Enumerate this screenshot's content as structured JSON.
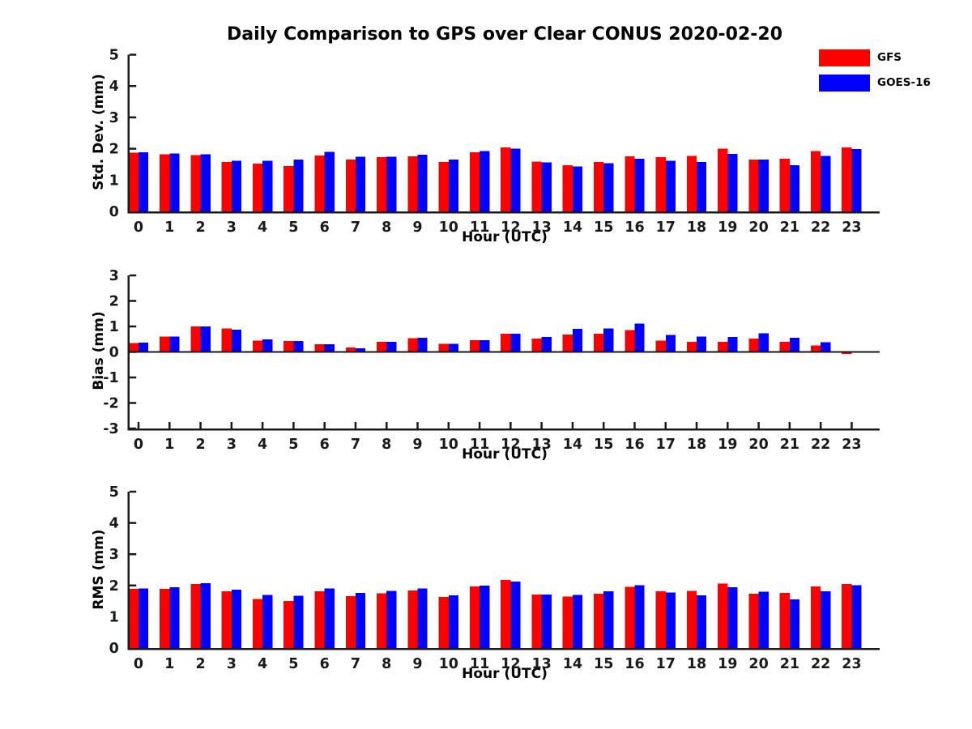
{
  "page": {
    "title": "Daily Comparison to GPS over Clear CONUS 2020-02-20",
    "background": "#ffffff"
  },
  "legend": {
    "items": [
      {
        "label": "GFS",
        "color": "#ff0000"
      },
      {
        "label": "GOES-16",
        "color": "#0000ff"
      }
    ]
  },
  "axis": {
    "color": "#1a1a1a",
    "text_color": "#1a1a1a"
  },
  "chart_data": [
    {
      "type": "bar",
      "name": "std-dev",
      "ylabel": "Std. Dev. (mm)",
      "xlabel": "Hour (UTC)",
      "ylim": [
        0,
        5
      ],
      "yticks": [
        0,
        1,
        2,
        3,
        4,
        5
      ],
      "grid": false,
      "categories": [
        0,
        1,
        2,
        3,
        4,
        5,
        6,
        7,
        8,
        9,
        10,
        11,
        12,
        13,
        14,
        15,
        16,
        17,
        18,
        19,
        20,
        21,
        22,
        23
      ],
      "series": [
        {
          "name": "GFS",
          "color": "#ff0000",
          "values": [
            1.87,
            1.82,
            1.79,
            1.57,
            1.53,
            1.45,
            1.78,
            1.66,
            1.73,
            1.76,
            1.57,
            1.89,
            2.04,
            1.59,
            1.47,
            1.58,
            1.76,
            1.73,
            1.77,
            2.0,
            1.66,
            1.68,
            1.93,
            2.04
          ]
        },
        {
          "name": "GOES-16",
          "color": "#0000ff",
          "values": [
            1.88,
            1.85,
            1.82,
            1.62,
            1.62,
            1.65,
            1.9,
            1.75,
            1.75,
            1.81,
            1.65,
            1.93,
            2.0,
            1.56,
            1.43,
            1.54,
            1.68,
            1.61,
            1.57,
            1.83,
            1.66,
            1.47,
            1.77,
            1.99
          ]
        }
      ]
    },
    {
      "type": "bar",
      "name": "bias",
      "ylabel": "Bias (mm)",
      "xlabel": "Hour (UTC)",
      "ylim": [
        -3,
        3
      ],
      "yticks": [
        -3,
        -2,
        -1,
        0,
        1,
        2,
        3
      ],
      "zero_line": true,
      "grid": false,
      "categories": [
        0,
        1,
        2,
        3,
        4,
        5,
        6,
        7,
        8,
        9,
        10,
        11,
        12,
        13,
        14,
        15,
        16,
        17,
        18,
        19,
        20,
        21,
        22,
        23
      ],
      "series": [
        {
          "name": "GFS",
          "color": "#ff0000",
          "values": [
            0.35,
            0.6,
            1.0,
            0.92,
            0.45,
            0.43,
            0.3,
            0.18,
            0.39,
            0.54,
            0.32,
            0.46,
            0.71,
            0.52,
            0.68,
            0.72,
            0.86,
            0.45,
            0.39,
            0.39,
            0.52,
            0.39,
            0.26,
            -0.08
          ]
        },
        {
          "name": "GOES-16",
          "color": "#0000ff",
          "values": [
            0.36,
            0.61,
            1.0,
            0.88,
            0.49,
            0.43,
            0.3,
            0.15,
            0.39,
            0.55,
            0.32,
            0.46,
            0.71,
            0.58,
            0.9,
            0.92,
            1.11,
            0.67,
            0.61,
            0.58,
            0.73,
            0.56,
            0.38,
            -0.03
          ]
        }
      ]
    },
    {
      "type": "bar",
      "name": "rms",
      "ylabel": "RMS (mm)",
      "xlabel": "Hour (UTC)",
      "ylim": [
        0,
        5
      ],
      "yticks": [
        0,
        1,
        2,
        3,
        4,
        5
      ],
      "grid": false,
      "categories": [
        0,
        1,
        2,
        3,
        4,
        5,
        6,
        7,
        8,
        9,
        10,
        11,
        12,
        13,
        14,
        15,
        16,
        17,
        18,
        19,
        20,
        21,
        22,
        23
      ],
      "series": [
        {
          "name": "GFS",
          "color": "#ff0000",
          "values": [
            1.89,
            1.89,
            2.05,
            1.81,
            1.57,
            1.5,
            1.81,
            1.66,
            1.75,
            1.84,
            1.63,
            1.97,
            2.17,
            1.71,
            1.65,
            1.74,
            1.95,
            1.81,
            1.82,
            2.06,
            1.74,
            1.76,
            1.97,
            2.05
          ]
        },
        {
          "name": "GOES-16",
          "color": "#0000ff",
          "values": [
            1.91,
            1.94,
            2.07,
            1.86,
            1.7,
            1.67,
            1.91,
            1.76,
            1.82,
            1.9,
            1.68,
            2.0,
            2.12,
            1.71,
            1.7,
            1.81,
            2.01,
            1.77,
            1.69,
            1.94,
            1.8,
            1.56,
            1.81,
            2.01
          ]
        }
      ]
    }
  ]
}
